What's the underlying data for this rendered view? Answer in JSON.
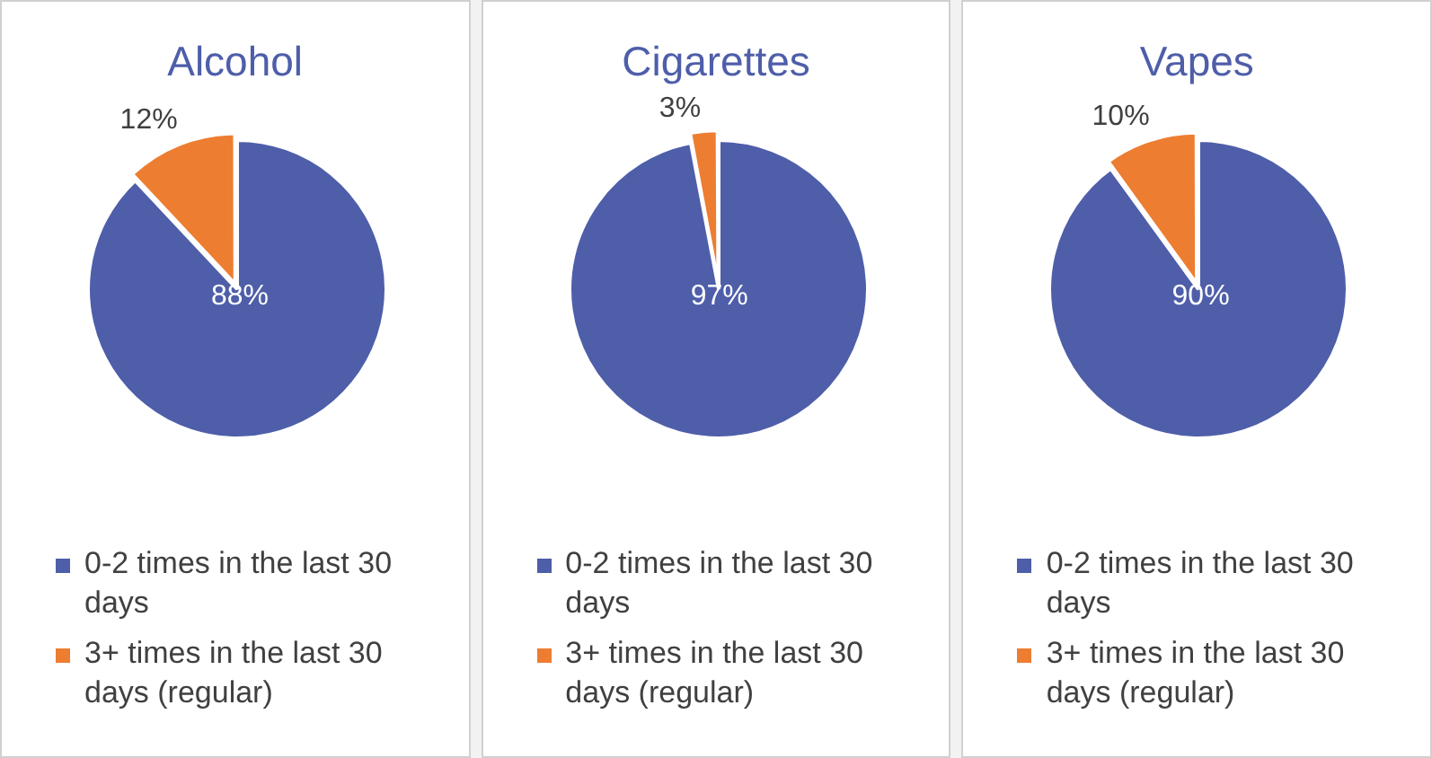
{
  "chart_data": [
    {
      "type": "pie",
      "title": "Alcohol",
      "categories": [
        "0-2 times in the last 30 days",
        "3+ times in the last 30 days (regular)"
      ],
      "values": [
        88,
        12
      ],
      "colors": [
        "#4e5ea9",
        "#ed7d31"
      ],
      "value_labels": [
        "88%",
        "12%"
      ],
      "legend": "bottom"
    },
    {
      "type": "pie",
      "title": "Cigarettes",
      "categories": [
        "0-2 times in the last 30 days",
        "3+ times in the last 30 days (regular)"
      ],
      "values": [
        97,
        3
      ],
      "colors": [
        "#4e5ea9",
        "#ed7d31"
      ],
      "value_labels": [
        "97%",
        "3%"
      ],
      "legend": "bottom"
    },
    {
      "type": "pie",
      "title": "Vapes",
      "categories": [
        "0-2 times in the last 30 days",
        "3+ times in the last 30 days (regular)"
      ],
      "values": [
        90,
        10
      ],
      "colors": [
        "#4e5ea9",
        "#ed7d31"
      ],
      "value_labels": [
        "90%",
        "10%"
      ],
      "legend": "bottom"
    }
  ]
}
